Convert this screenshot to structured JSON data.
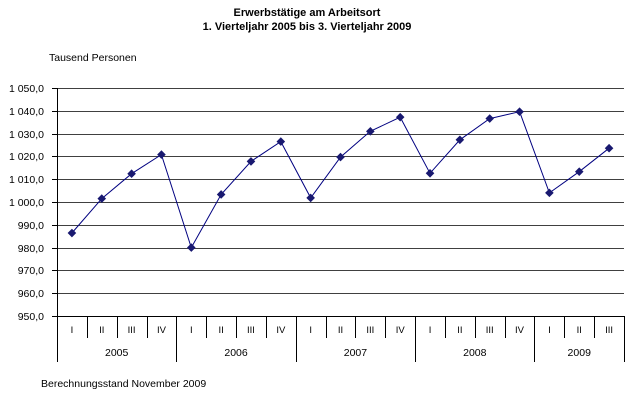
{
  "title": {
    "line1": "Erwerbstätige am Arbeitsort",
    "line2": "1. Vierteljahr 2005 bis 3. Vierteljahr 2009"
  },
  "footnote": "Berechnungsstand November 2009",
  "colors": {
    "background": "#ffffff",
    "text": "#000000",
    "gridline": "#404040",
    "axis": "#000000",
    "series_line": "#000080",
    "marker": "#191970"
  },
  "chart_data": {
    "type": "line",
    "title": "Erwerbstätige am Arbeitsort",
    "subtitle": "1. Vierteljahr 2005 bis 3. Vierteljahr 2009",
    "ylabel": "Tausend Personen",
    "ylim": [
      950,
      1050
    ],
    "ytick_step": 10,
    "ytick_labels": [
      "1 050,0",
      "1 040,0",
      "1 030,0",
      "1 020,0",
      "1 010,0",
      "1 000,0",
      "990,0",
      "980,0",
      "970,0",
      "960,0",
      "950,0"
    ],
    "grid": true,
    "legend": "none",
    "marker": "diamond",
    "years": [
      {
        "label": "2005",
        "quarters": [
          "I",
          "II",
          "III",
          "IV"
        ],
        "values": [
          986.4,
          1001.5,
          1012.4,
          1020.8
        ]
      },
      {
        "label": "2006",
        "quarters": [
          "I",
          "II",
          "III",
          "IV"
        ],
        "values": [
          980.0,
          1003.3,
          1017.8,
          1026.5
        ]
      },
      {
        "label": "2007",
        "quarters": [
          "I",
          "II",
          "III",
          "IV"
        ],
        "values": [
          1001.8,
          1019.7,
          1031.0,
          1037.2
        ]
      },
      {
        "label": "2008",
        "quarters": [
          "I",
          "II",
          "III",
          "IV"
        ],
        "values": [
          1012.6,
          1027.3,
          1036.6,
          1039.6
        ]
      },
      {
        "label": "2009",
        "quarters": [
          "I",
          "II",
          "III"
        ],
        "values": [
          1004.0,
          1013.3,
          1023.6
        ]
      }
    ]
  }
}
